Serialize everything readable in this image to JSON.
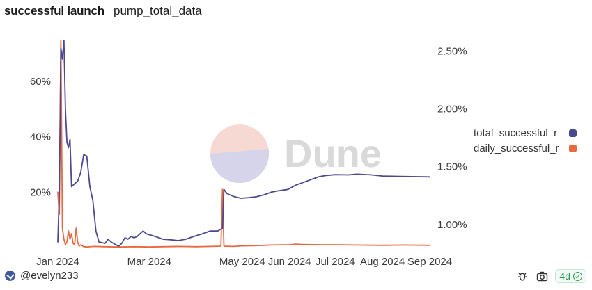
{
  "header": {
    "title": "successful launch",
    "subtitle": "pump_total_data"
  },
  "watermark": {
    "text": "Dune"
  },
  "chart_data": {
    "type": "line",
    "title": "successful launch",
    "subtitle": "pump_total_data",
    "x_axis": {
      "type": "date",
      "range": [
        "2024-01-01",
        "2024-09-01"
      ],
      "tick_labels": [
        "Jan 2024",
        "Mar 2024",
        "May 2024",
        "Jun 2024",
        "Jul 2024",
        "Aug 2024",
        "Sep 2024"
      ],
      "tick_dates": [
        "2024-01-01",
        "2024-03-01",
        "2024-05-01",
        "2024-06-01",
        "2024-07-01",
        "2024-08-01",
        "2024-09-01"
      ]
    },
    "y_left": {
      "range": [
        0,
        0.75
      ],
      "ticks": [
        0.2,
        0.4,
        0.6
      ],
      "tick_labels": [
        "20%",
        "40%",
        "60%"
      ]
    },
    "y_right": {
      "range": [
        0.8,
        2.6
      ],
      "ticks": [
        1.0,
        1.5,
        2.0,
        2.5
      ],
      "tick_labels": [
        "1.00%",
        "1.50%",
        "2.00%",
        "2.50%"
      ]
    },
    "legend": {
      "position": "right"
    },
    "series": [
      {
        "name": "total_successful_r",
        "color": "#4c4a8e",
        "axis": "left",
        "points": [
          [
            "2024-01-01",
            0.02
          ],
          [
            "2024-01-02",
            0.2
          ],
          [
            "2024-01-03",
            0.72
          ],
          [
            "2024-01-04",
            0.68
          ],
          [
            "2024-01-05",
            0.75
          ],
          [
            "2024-01-06",
            0.5
          ],
          [
            "2024-01-07",
            0.38
          ],
          [
            "2024-01-08",
            0.36
          ],
          [
            "2024-01-09",
            0.39
          ],
          [
            "2024-01-10",
            0.22
          ],
          [
            "2024-01-12",
            0.23
          ],
          [
            "2024-01-14",
            0.24
          ],
          [
            "2024-01-16",
            0.27
          ],
          [
            "2024-01-18",
            0.335
          ],
          [
            "2024-01-20",
            0.33
          ],
          [
            "2024-01-22",
            0.22
          ],
          [
            "2024-01-24",
            0.17
          ],
          [
            "2024-01-26",
            0.06
          ],
          [
            "2024-01-28",
            0.02
          ],
          [
            "2024-02-01",
            0.015
          ],
          [
            "2024-02-03",
            0.03
          ],
          [
            "2024-02-05",
            0.02
          ],
          [
            "2024-02-08",
            0.01
          ],
          [
            "2024-02-10",
            0.005
          ],
          [
            "2024-02-12",
            0.015
          ],
          [
            "2024-02-14",
            0.035
          ],
          [
            "2024-02-16",
            0.03
          ],
          [
            "2024-02-18",
            0.04
          ],
          [
            "2024-02-20",
            0.035
          ],
          [
            "2024-02-22",
            0.04
          ],
          [
            "2024-02-24",
            0.05
          ],
          [
            "2024-02-26",
            0.06
          ],
          [
            "2024-02-28",
            0.05
          ],
          [
            "2024-03-02",
            0.045
          ],
          [
            "2024-03-05",
            0.04
          ],
          [
            "2024-03-10",
            0.03
          ],
          [
            "2024-03-15",
            0.028
          ],
          [
            "2024-03-20",
            0.025
          ],
          [
            "2024-03-25",
            0.03
          ],
          [
            "2024-03-30",
            0.04
          ],
          [
            "2024-04-05",
            0.05
          ],
          [
            "2024-04-10",
            0.06
          ],
          [
            "2024-04-15",
            0.06
          ],
          [
            "2024-04-18",
            0.07
          ],
          [
            "2024-04-19",
            0.21
          ],
          [
            "2024-04-21",
            0.195
          ],
          [
            "2024-04-25",
            0.185
          ],
          [
            "2024-04-30",
            0.178
          ],
          [
            "2024-05-05",
            0.18
          ],
          [
            "2024-05-10",
            0.183
          ],
          [
            "2024-05-15",
            0.19
          ],
          [
            "2024-05-20",
            0.2
          ],
          [
            "2024-05-25",
            0.205
          ],
          [
            "2024-05-31",
            0.21
          ],
          [
            "2024-06-05",
            0.225
          ],
          [
            "2024-06-10",
            0.235
          ],
          [
            "2024-06-15",
            0.245
          ],
          [
            "2024-06-20",
            0.255
          ],
          [
            "2024-06-25",
            0.26
          ],
          [
            "2024-07-01",
            0.263
          ],
          [
            "2024-07-10",
            0.262
          ],
          [
            "2024-07-15",
            0.265
          ],
          [
            "2024-07-25",
            0.262
          ],
          [
            "2024-08-01",
            0.258
          ],
          [
            "2024-08-10",
            0.257
          ],
          [
            "2024-08-20",
            0.256
          ],
          [
            "2024-09-01",
            0.255
          ]
        ]
      },
      {
        "name": "daily_successful_r",
        "color": "#e8693f",
        "axis": "left",
        "points": [
          [
            "2024-01-01",
            0.2
          ],
          [
            "2024-01-02",
            0.12
          ],
          [
            "2024-01-03",
            0.75
          ],
          [
            "2024-01-04",
            0.07
          ],
          [
            "2024-01-05",
            0.03
          ],
          [
            "2024-01-06",
            0.01
          ],
          [
            "2024-01-07",
            0.02
          ],
          [
            "2024-01-08",
            0.06
          ],
          [
            "2024-01-09",
            0.03
          ],
          [
            "2024-01-10",
            0.05
          ],
          [
            "2024-01-11",
            0.015
          ],
          [
            "2024-01-12",
            0.01
          ],
          [
            "2024-01-13",
            0.07
          ],
          [
            "2024-01-14",
            0.02
          ],
          [
            "2024-01-15",
            0.005
          ],
          [
            "2024-01-16",
            0.01
          ],
          [
            "2024-01-18",
            0.003
          ],
          [
            "2024-01-20",
            0.002
          ],
          [
            "2024-01-25",
            0.004
          ],
          [
            "2024-02-01",
            0.003
          ],
          [
            "2024-02-10",
            0.002
          ],
          [
            "2024-02-20",
            0.003
          ],
          [
            "2024-03-01",
            0.002
          ],
          [
            "2024-03-10",
            0.003
          ],
          [
            "2024-03-20",
            0.004
          ],
          [
            "2024-04-01",
            0.003
          ],
          [
            "2024-04-10",
            0.004
          ],
          [
            "2024-04-17",
            0.005
          ],
          [
            "2024-04-18",
            0.21
          ],
          [
            "2024-04-19",
            0.005
          ],
          [
            "2024-04-25",
            0.004
          ],
          [
            "2024-05-01",
            0.006
          ],
          [
            "2024-05-10",
            0.007
          ],
          [
            "2024-05-20",
            0.009
          ],
          [
            "2024-06-01",
            0.01
          ],
          [
            "2024-06-05",
            0.012
          ],
          [
            "2024-06-10",
            0.011
          ],
          [
            "2024-06-20",
            0.01
          ],
          [
            "2024-07-01",
            0.01
          ],
          [
            "2024-07-15",
            0.009
          ],
          [
            "2024-08-01",
            0.008
          ],
          [
            "2024-08-15",
            0.009
          ],
          [
            "2024-09-01",
            0.008
          ]
        ]
      }
    ]
  },
  "footer": {
    "author": "@evelyn233",
    "age_badge": "4d"
  }
}
